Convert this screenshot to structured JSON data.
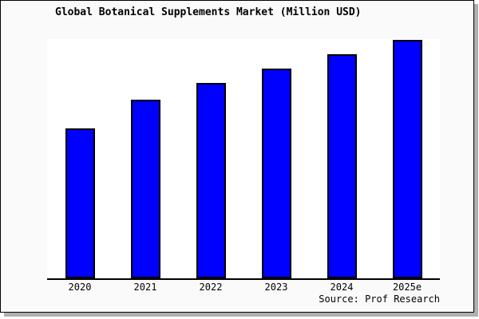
{
  "title": "Global Botanical Supplements Market (Million USD)",
  "source_note": "Source: Prof Research",
  "colors": {
    "bar_fill": "#0000ff",
    "bar_border": "#000000",
    "axis": "#000000",
    "card_background": "#fafafa",
    "plot_background": "#ffffff",
    "text": "#000000",
    "shadow": "#b0b0b0"
  },
  "chart_data": {
    "type": "bar",
    "title": "Global Botanical Supplements Market (Million USD)",
    "categories": [
      "2020",
      "2021",
      "2022",
      "2023",
      "2024",
      "2025e"
    ],
    "values": [
      63,
      75,
      82,
      88,
      94,
      100
    ],
    "value_note": "No y-axis scale or data labels shown; values are relative bar heights with 2025e = 100",
    "xlabel": "",
    "ylabel": "",
    "ylim": [
      0,
      100
    ],
    "y_axis_shown": false,
    "gridlines": false,
    "legend": "none",
    "source": "Source: Prof Research"
  }
}
